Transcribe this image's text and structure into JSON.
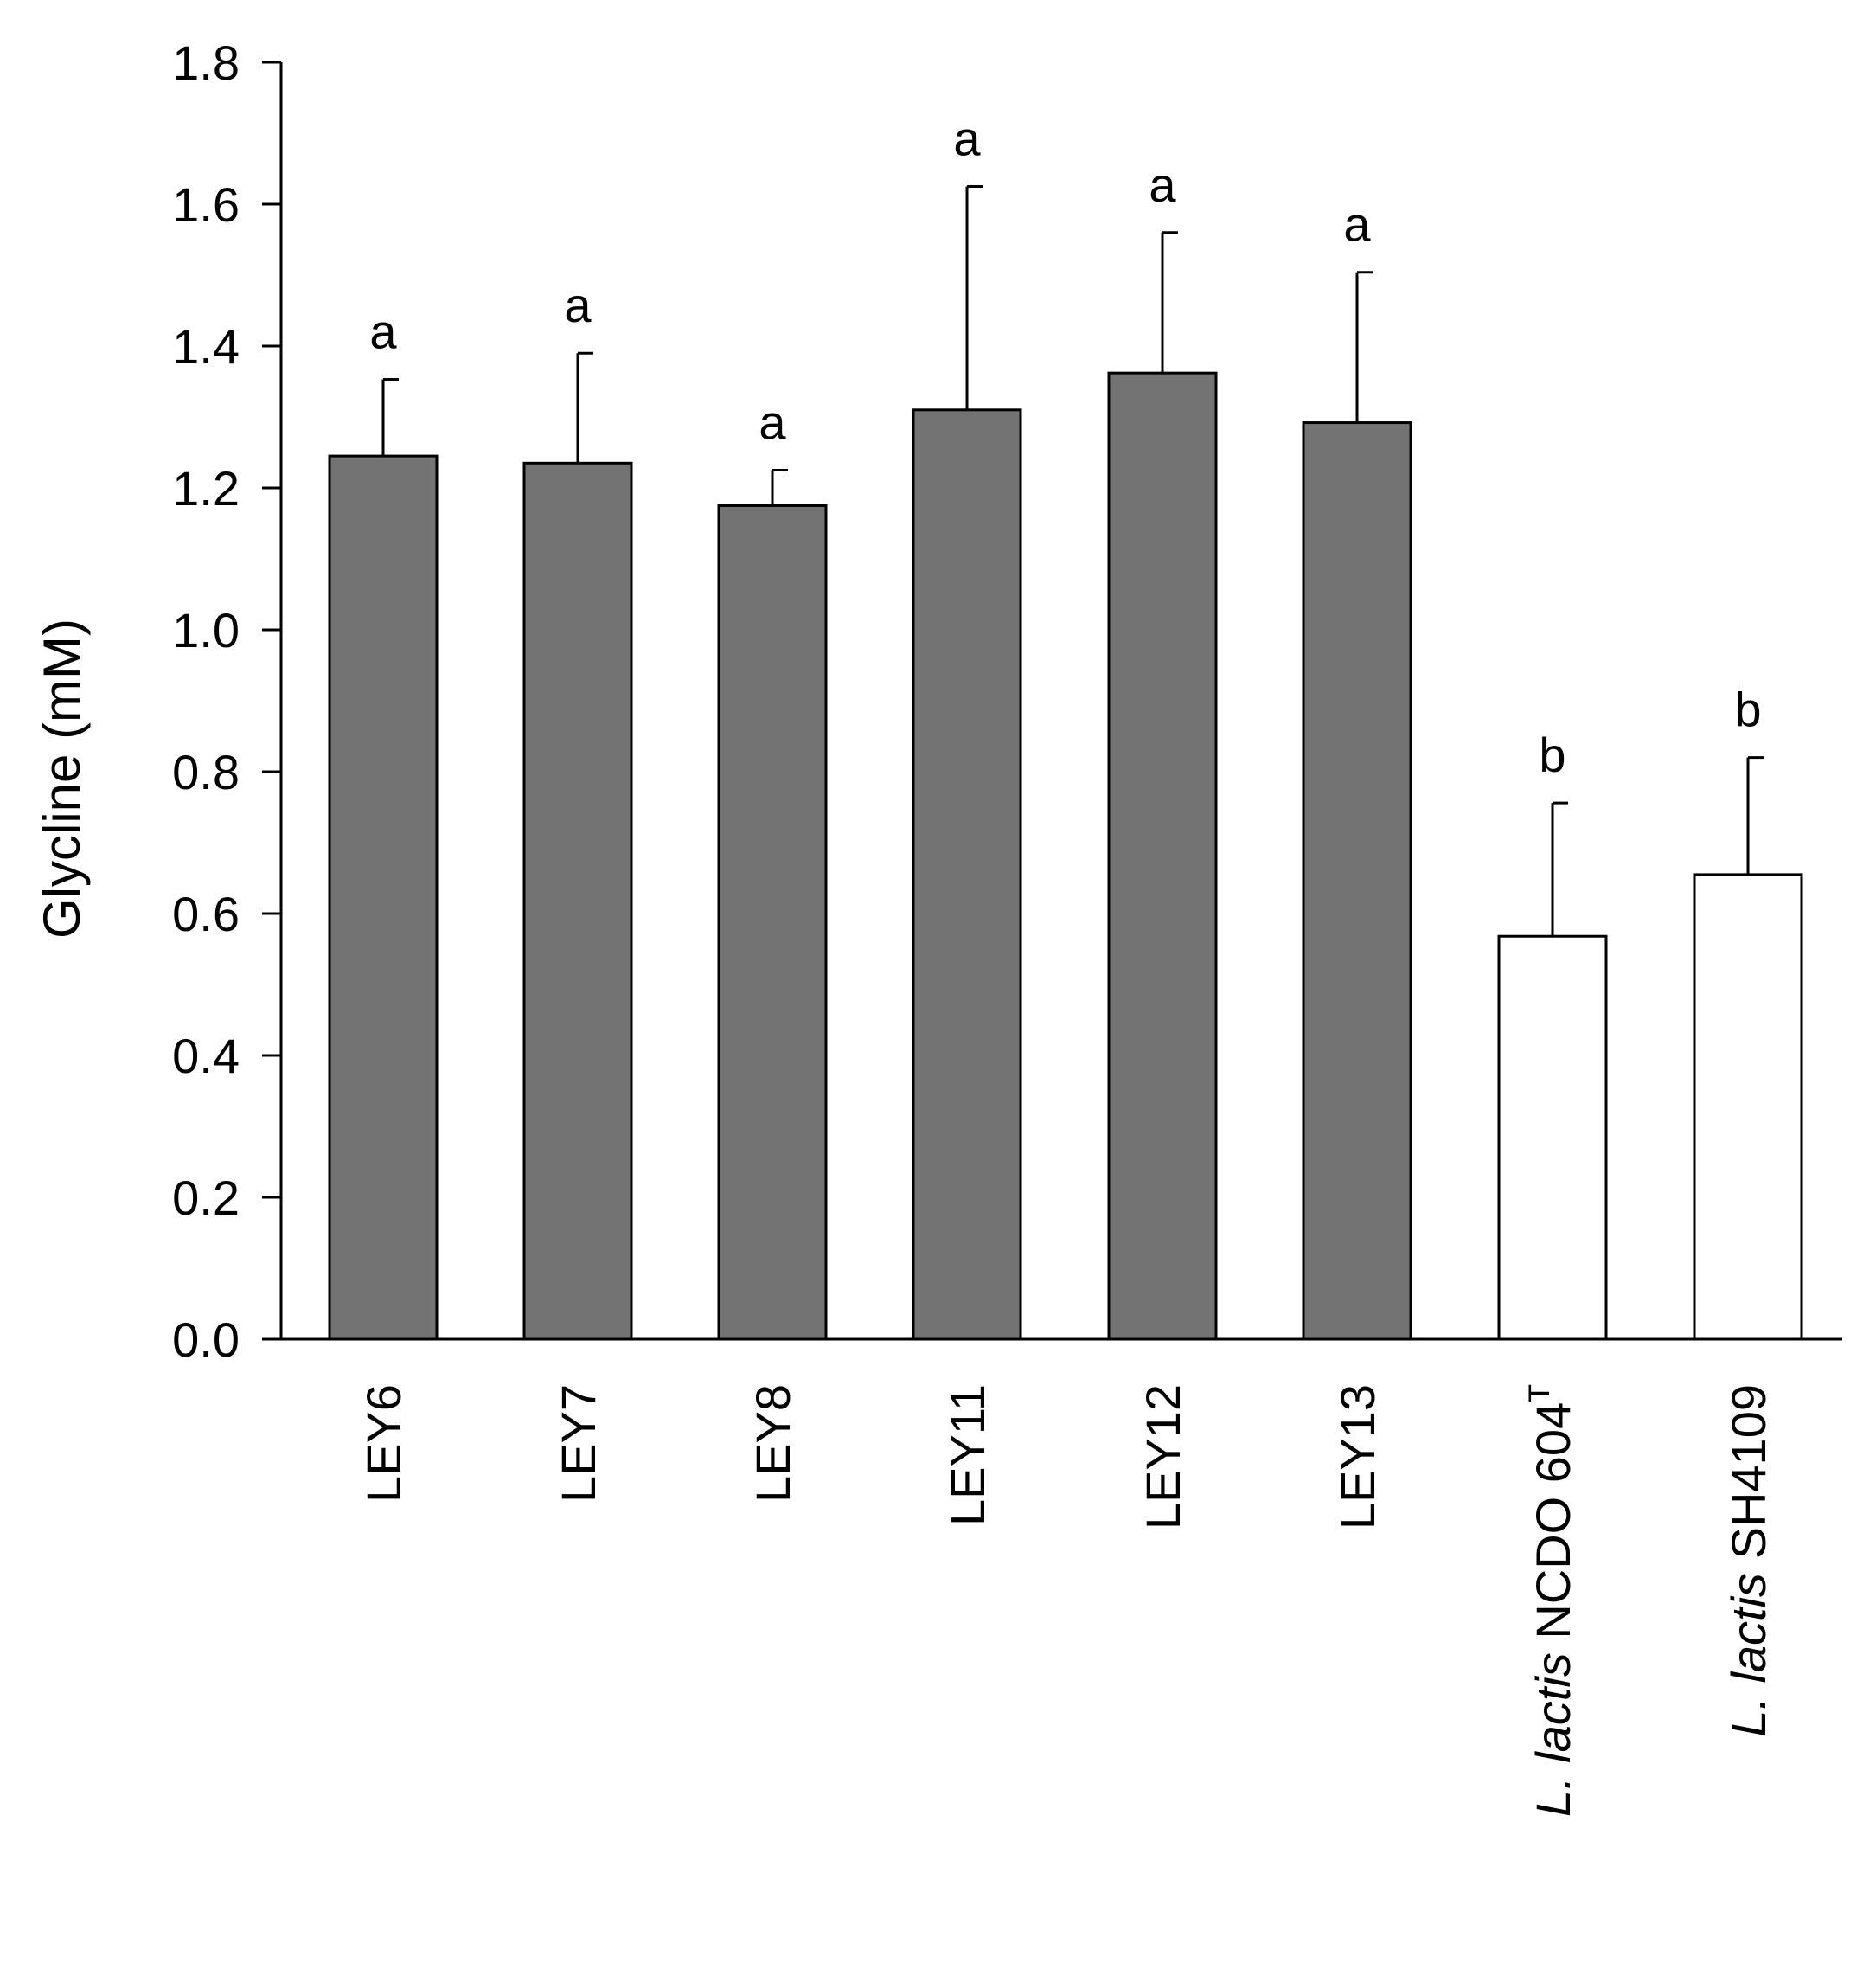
{
  "chart_data": {
    "type": "bar",
    "ylabel": "Glycline (mM)",
    "ylim": [
      0,
      1.8
    ],
    "yticks": [
      "0.0",
      "0.2",
      "0.4",
      "0.6",
      "0.8",
      "1.0",
      "1.2",
      "1.4",
      "1.6",
      "1.8"
    ],
    "grid": false,
    "categories": [
      {
        "prefix": "",
        "italic": "",
        "rest": "LEY6",
        "sup": ""
      },
      {
        "prefix": "",
        "italic": "",
        "rest": "LEY7",
        "sup": ""
      },
      {
        "prefix": "",
        "italic": "",
        "rest": "LEY8",
        "sup": ""
      },
      {
        "prefix": "",
        "italic": "",
        "rest": "LEY11",
        "sup": ""
      },
      {
        "prefix": "",
        "italic": "",
        "rest": "LEY12",
        "sup": ""
      },
      {
        "prefix": "",
        "italic": "",
        "rest": "LEY13",
        "sup": ""
      },
      {
        "prefix": "",
        "italic": "L. lactis",
        "rest": " NCDO 604",
        "sup": "T"
      },
      {
        "prefix": "",
        "italic": "L. lactis",
        "rest": " SH4109",
        "sup": ""
      }
    ],
    "values": [
      1.245,
      1.235,
      1.175,
      1.31,
      1.362,
      1.292,
      0.568,
      0.655
    ],
    "errors": [
      0.108,
      0.155,
      0.05,
      0.315,
      0.198,
      0.212,
      0.188,
      0.165
    ],
    "significance": [
      "a",
      "a",
      "a",
      "a",
      "a",
      "a",
      "b",
      "b"
    ],
    "bar_colors": [
      "#737373",
      "#737373",
      "#737373",
      "#737373",
      "#737373",
      "#737373",
      "#ffffff",
      "#ffffff"
    ]
  }
}
